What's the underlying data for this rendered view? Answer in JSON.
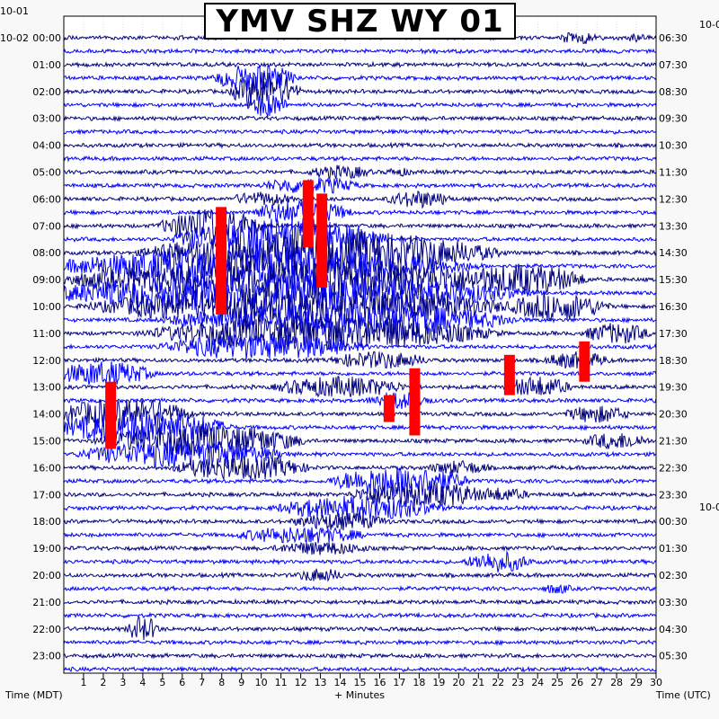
{
  "chart_data": {
    "type": "helicorder",
    "title": "YMV SHZ WY 01",
    "left_axis_label": "Time (MDT)",
    "right_axis_label": "Time (UTC)",
    "xlabel": "+ Minutes",
    "x_ticks": [
      "1",
      "2",
      "3",
      "4",
      "5",
      "6",
      "7",
      "8",
      "9",
      "10",
      "11",
      "12",
      "13",
      "14",
      "15",
      "16",
      "17",
      "18",
      "19",
      "20",
      "21",
      "22",
      "23",
      "24",
      "25",
      "26",
      "27",
      "28",
      "29",
      "30"
    ],
    "x_range_minutes": [
      0,
      30
    ],
    "trace_count": 48,
    "minutes_per_trace": 30,
    "left_date_labels": [
      "10-01",
      "10-02"
    ],
    "right_date_labels": [
      "10-0",
      "10-0"
    ],
    "left_hour_labels": [
      "00:00",
      "01:00",
      "02:00",
      "03:00",
      "04:00",
      "05:00",
      "06:00",
      "07:00",
      "08:00",
      "09:00",
      "10:00",
      "11:00",
      "12:00",
      "13:00",
      "14:00",
      "15:00",
      "16:00",
      "17:00",
      "18:00",
      "19:00",
      "20:00",
      "21:00",
      "22:00",
      "23:00"
    ],
    "right_hour_labels": [
      "06:30",
      "07:30",
      "08:30",
      "09:30",
      "10:30",
      "11:30",
      "12:30",
      "13:30",
      "14:30",
      "15:30",
      "16:30",
      "17:30",
      "18:30",
      "19:30",
      "20:30",
      "21:30",
      "22:30",
      "23:30",
      "00:30",
      "01:30",
      "02:30",
      "03:30",
      "04:30",
      "05:30"
    ],
    "trace_colors": [
      "#00007f",
      "#0000ff"
    ],
    "clip_color": "#ff0000",
    "grid": true
  }
}
